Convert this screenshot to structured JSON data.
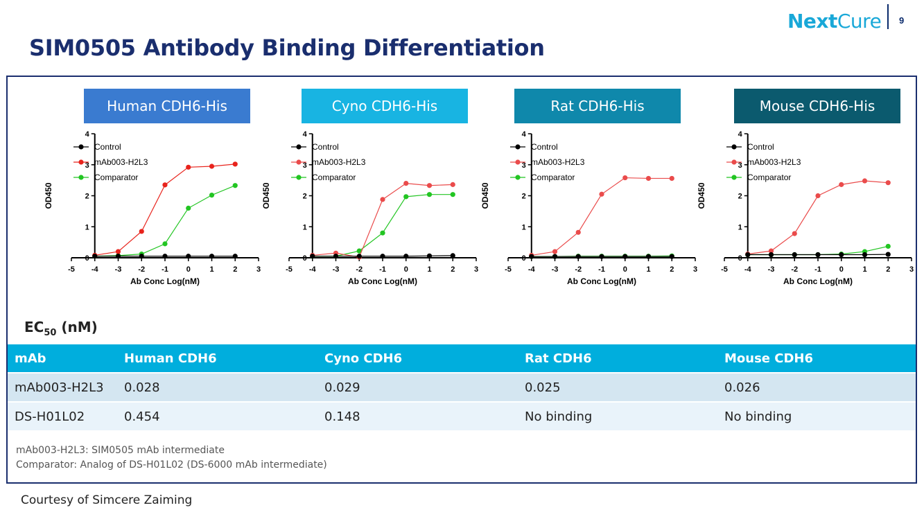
{
  "header": {
    "logo_next": "Next",
    "logo_cure": "Cure",
    "page_number": "9",
    "title": "SIM0505 Antibody Binding Differentiation"
  },
  "chart_data": [
    {
      "type": "line",
      "title": "Human CDH6-His",
      "header_color": "#3a7bd0",
      "xlabel": "Ab Conc Log(nM)",
      "ylabel": "OD450",
      "xlim": [
        -5,
        3
      ],
      "ylim": [
        0,
        4
      ],
      "xticks": [
        "-5",
        "-4",
        "-3",
        "-2",
        "-1",
        "0",
        "1",
        "2",
        "3"
      ],
      "yticks": [
        "0",
        "1",
        "2",
        "3",
        "4"
      ],
      "legend_position": "top-left",
      "x": [
        -4,
        -3,
        -2,
        -1,
        0,
        1,
        2
      ],
      "series": [
        {
          "name": "Control",
          "color": "#000000",
          "values": [
            0.05,
            0.05,
            0.05,
            0.05,
            0.05,
            0.05,
            0.05
          ]
        },
        {
          "name": "mAb003-H2L3",
          "color": "#e8231c",
          "values": [
            0.08,
            0.2,
            0.85,
            2.35,
            2.92,
            2.95,
            3.02
          ]
        },
        {
          "name": "Comparator",
          "color": "#22c522",
          "values": [
            0.05,
            0.07,
            0.12,
            0.45,
            1.6,
            2.02,
            2.33
          ]
        }
      ]
    },
    {
      "type": "line",
      "title": "Cyno CDH6-His",
      "header_color": "#18b4e2",
      "xlabel": "Ab Conc Log(nM)",
      "ylabel": "OD450",
      "xlim": [
        -5,
        3
      ],
      "ylim": [
        0,
        4
      ],
      "xticks": [
        "-5",
        "-4",
        "-3",
        "-2",
        "-1",
        "0",
        "1",
        "2",
        "3"
      ],
      "yticks": [
        "0",
        "1",
        "2",
        "3",
        "4"
      ],
      "legend_position": "top-left",
      "x": [
        -4,
        -3,
        -2,
        -1,
        0,
        1,
        2
      ],
      "series": [
        {
          "name": "Control",
          "color": "#000000",
          "values": [
            0.05,
            0.05,
            0.05,
            0.05,
            0.05,
            0.06,
            0.07
          ]
        },
        {
          "name": "mAb003-H2L3",
          "color": "#ea4b4b",
          "values": [
            0.08,
            0.15,
            0.02,
            1.88,
            2.4,
            2.33,
            2.36
          ]
        },
        {
          "name": "Comparator",
          "color": "#22c522",
          "values": [
            0.05,
            0.05,
            0.22,
            0.8,
            1.97,
            2.04,
            2.04
          ]
        }
      ]
    },
    {
      "type": "line",
      "title": "Rat CDH6-His",
      "header_color": "#0f88ab",
      "xlabel": "Ab Conc Log(nM)",
      "ylabel": "OD450",
      "xlim": [
        -5,
        3
      ],
      "ylim": [
        0,
        4
      ],
      "xticks": [
        "-5",
        "-4",
        "-3",
        "-2",
        "-1",
        "0",
        "1",
        "2",
        "3"
      ],
      "yticks": [
        "0",
        "1",
        "2",
        "3",
        "4"
      ],
      "legend_position": "top-left",
      "x": [
        -4,
        -3,
        -2,
        -1,
        0,
        1,
        2
      ],
      "series": [
        {
          "name": "Control",
          "color": "#000000",
          "values": [
            0.04,
            0.04,
            0.04,
            0.04,
            0.04,
            0.04,
            0.04
          ]
        },
        {
          "name": "mAb003-H2L3",
          "color": "#ea4b4b",
          "values": [
            0.08,
            0.2,
            0.82,
            2.05,
            2.58,
            2.56,
            2.56
          ]
        },
        {
          "name": "Comparator",
          "color": "#22c522",
          "values": [
            0.04,
            0.04,
            0.05,
            0.05,
            0.05,
            0.05,
            0.06
          ]
        }
      ]
    },
    {
      "type": "line",
      "title": "Mouse CDH6-His",
      "header_color": "#0b5a6e",
      "xlabel": "Ab Conc Log(nM)",
      "ylabel": "OD450",
      "xlim": [
        -5,
        3
      ],
      "ylim": [
        0,
        4
      ],
      "xticks": [
        "-5",
        "-4",
        "-3",
        "-2",
        "-1",
        "0",
        "1",
        "2",
        "3"
      ],
      "yticks": [
        "0",
        "1",
        "2",
        "3",
        "4"
      ],
      "legend_position": "top-left",
      "x": [
        -4,
        -3,
        -2,
        -1,
        0,
        1,
        2
      ],
      "series": [
        {
          "name": "Control",
          "color": "#000000",
          "values": [
            0.1,
            0.1,
            0.1,
            0.1,
            0.1,
            0.1,
            0.11
          ]
        },
        {
          "name": "mAb003-H2L3",
          "color": "#ea4b4b",
          "values": [
            0.12,
            0.22,
            0.78,
            2.0,
            2.36,
            2.48,
            2.42
          ]
        },
        {
          "name": "Comparator",
          "color": "#22c522",
          "values": [
            0.1,
            0.1,
            0.1,
            0.1,
            0.12,
            0.2,
            0.37
          ]
        }
      ]
    }
  ],
  "ec50": {
    "label_main": "EC",
    "label_sub": "50",
    "label_unit": " (nM)",
    "headers": [
      "mAb",
      "Human CDH6",
      "Cyno CDH6",
      "Rat CDH6",
      "Mouse CDH6"
    ],
    "rows": [
      [
        "mAb003-H2L3",
        "0.028",
        "0.029",
        "0.025",
        "0.026"
      ],
      [
        "DS-H01L02",
        "0.454",
        "0.148",
        "No binding",
        "No binding"
      ]
    ]
  },
  "notes": [
    "mAb003-H2L3: SIM0505 mAb intermediate",
    "Comparator: Analog of DS-H01L02 (DS-6000 mAb intermediate)"
  ],
  "courtesy": "Courtesy of Simcere Zaiming"
}
